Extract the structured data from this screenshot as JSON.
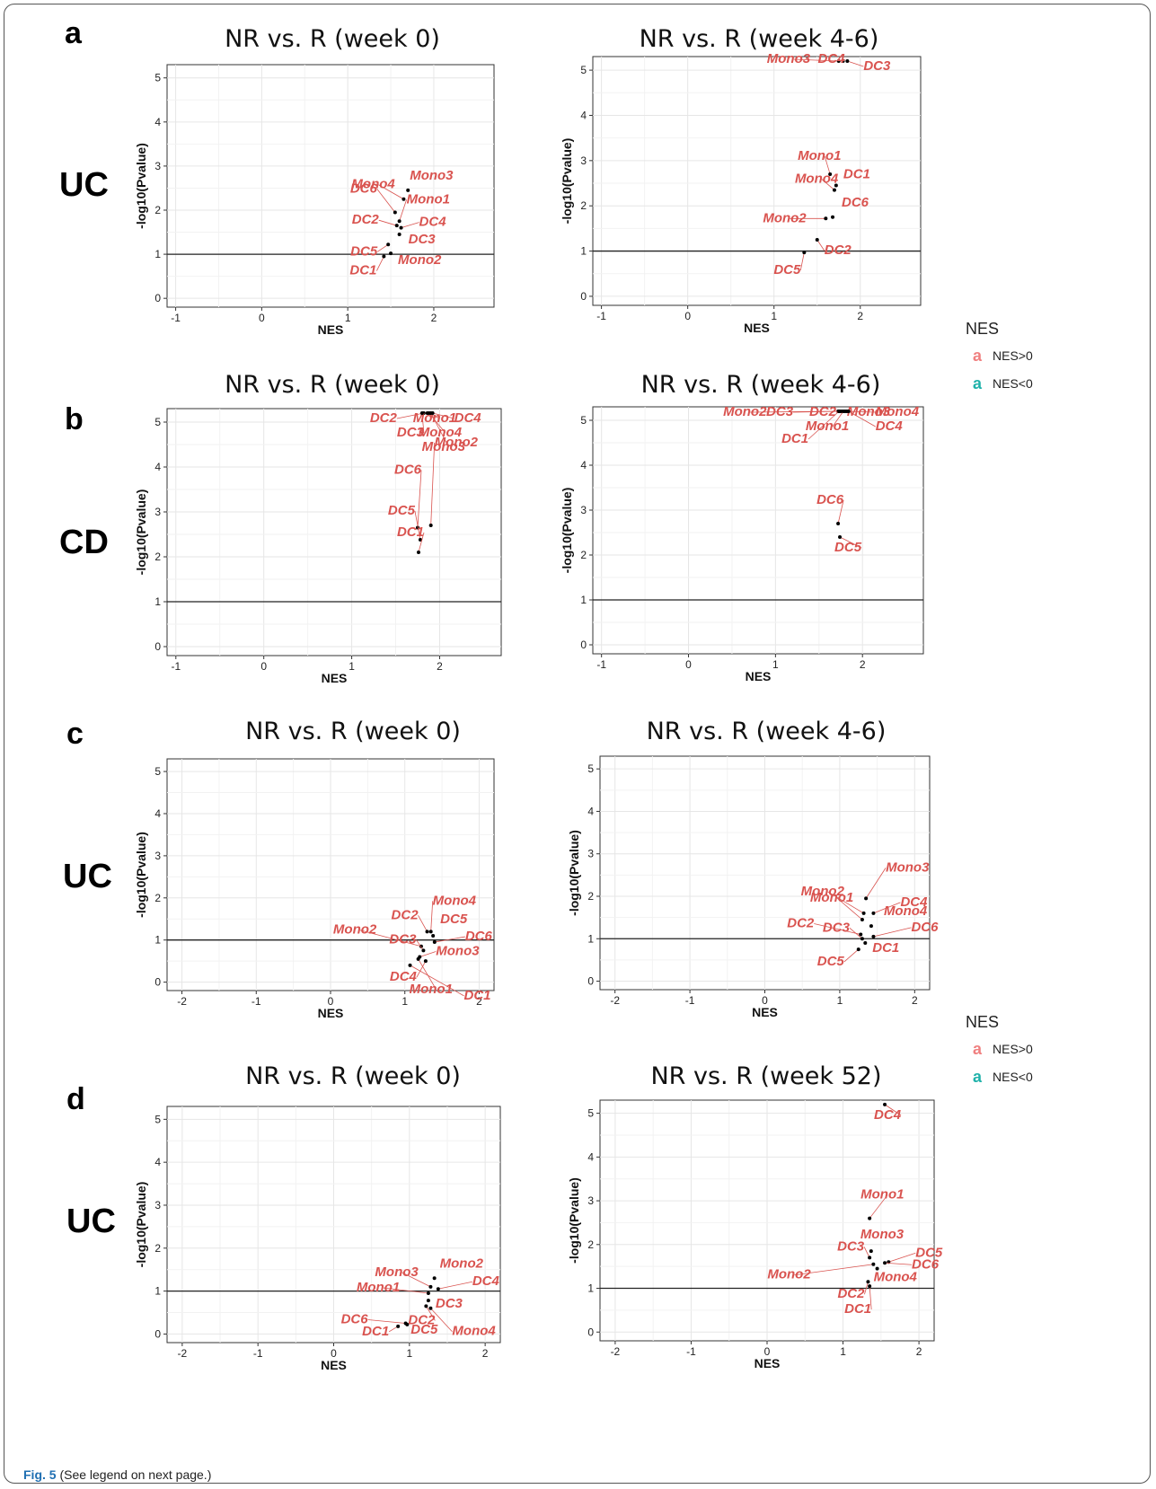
{
  "figure": {
    "caption_bold": "Fig. 5",
    "caption_rest": " (See legend on next page.)",
    "legends": [
      {
        "title": "NES",
        "items": [
          {
            "key": "a",
            "label": "NES>0",
            "color": "#f08080"
          },
          {
            "key": "a",
            "label": "NES<0",
            "color": "#20b2aa"
          }
        ]
      },
      {
        "title": "NES",
        "items": [
          {
            "key": "a",
            "label": "NES>0",
            "color": "#f08080"
          },
          {
            "key": "a",
            "label": "NES<0",
            "color": "#20b2aa"
          }
        ]
      }
    ],
    "rows": [
      {
        "letter": "a",
        "label": "UC"
      },
      {
        "letter": "b",
        "label": "CD"
      },
      {
        "letter": "c",
        "label": "UC"
      },
      {
        "letter": "d",
        "label": "UC"
      }
    ],
    "label_color": "#d9534f",
    "point_color": "#000000"
  },
  "chart_data": [
    {
      "type": "scatter",
      "title": "NR vs. R (week 0)",
      "xlabel": "NES",
      "ylabel": "-log10(Pvalue)",
      "xlim": [
        -1.1,
        2.7
      ],
      "ylim": [
        -0.2,
        5.3
      ],
      "xticks": [
        -1,
        0,
        1,
        2
      ],
      "yticks": [
        0,
        1,
        2,
        3,
        4,
        5
      ],
      "hline": 1,
      "points": [
        {
          "label": "Mono3",
          "x": 1.7,
          "y": 2.45
        },
        {
          "label": "Mono4",
          "x": 1.65,
          "y": 2.25
        },
        {
          "label": "DC6",
          "x": 1.55,
          "y": 1.95
        },
        {
          "label": "Mono1",
          "x": 1.6,
          "y": 1.75
        },
        {
          "label": "DC2",
          "x": 1.57,
          "y": 1.65
        },
        {
          "label": "DC4",
          "x": 1.62,
          "y": 1.6
        },
        {
          "label": "DC3",
          "x": 1.6,
          "y": 1.45
        },
        {
          "label": "DC5",
          "x": 1.47,
          "y": 1.22
        },
        {
          "label": "Mono2",
          "x": 1.5,
          "y": 1.02
        },
        {
          "label": "DC1",
          "x": 1.42,
          "y": 0.95
        }
      ]
    },
    {
      "type": "scatter",
      "title": "NR vs. R (week 4-6)",
      "xlabel": "NES",
      "ylabel": "-log10(Pvalue)",
      "xlim": [
        -1.1,
        2.7
      ],
      "ylim": [
        -0.2,
        5.3
      ],
      "xticks": [
        -1,
        0,
        1,
        2
      ],
      "yticks": [
        0,
        1,
        2,
        3,
        4,
        5
      ],
      "hline": 1,
      "points": [
        {
          "label": "Mono3",
          "x": 1.75,
          "y": 5.2
        },
        {
          "label": "DC4",
          "x": 1.8,
          "y": 5.2
        },
        {
          "label": "DC3",
          "x": 1.85,
          "y": 5.2
        },
        {
          "label": "Mono1",
          "x": 1.65,
          "y": 2.7
        },
        {
          "label": "DC1",
          "x": 1.72,
          "y": 2.45
        },
        {
          "label": "Mono4",
          "x": 1.7,
          "y": 2.35
        },
        {
          "label": "DC6",
          "x": 1.68,
          "y": 1.75
        },
        {
          "label": "Mono2",
          "x": 1.6,
          "y": 1.72
        },
        {
          "label": "DC2",
          "x": 1.5,
          "y": 1.25
        },
        {
          "label": "DC5",
          "x": 1.35,
          "y": 0.97
        }
      ]
    },
    {
      "type": "scatter",
      "title": "NR vs. R (week 0)",
      "xlabel": "NES",
      "ylabel": "-log10(Pvalue)",
      "xlim": [
        -1.1,
        2.7
      ],
      "ylim": [
        -0.2,
        5.3
      ],
      "xticks": [
        -1,
        0,
        1,
        2
      ],
      "yticks": [
        0,
        1,
        2,
        3,
        4,
        5
      ],
      "hline": 1,
      "points": [
        {
          "label": "DC2",
          "x": 1.82,
          "y": 5.2
        },
        {
          "label": "Mono1",
          "x": 1.86,
          "y": 5.2
        },
        {
          "label": "DC4",
          "x": 1.92,
          "y": 5.2
        },
        {
          "label": "DC3",
          "x": 1.8,
          "y": 5.2
        },
        {
          "label": "Mono4",
          "x": 1.88,
          "y": 5.2
        },
        {
          "label": "Mono3",
          "x": 1.9,
          "y": 5.2
        },
        {
          "label": "DC6",
          "x": 1.75,
          "y": 2.65
        },
        {
          "label": "Mono2",
          "x": 1.9,
          "y": 2.7
        },
        {
          "label": "DC5",
          "x": 1.78,
          "y": 2.38
        },
        {
          "label": "DC1",
          "x": 1.76,
          "y": 2.1
        }
      ]
    },
    {
      "type": "scatter",
      "title": "NR vs. R (week 4-6)",
      "xlabel": "NES",
      "ylabel": "-log10(Pvalue)",
      "xlim": [
        -1.1,
        2.7
      ],
      "ylim": [
        -0.2,
        5.3
      ],
      "xticks": [
        -1,
        0,
        1,
        2
      ],
      "yticks": [
        0,
        1,
        2,
        3,
        4,
        5
      ],
      "hline": 1,
      "points": [
        {
          "label": "Mono2",
          "x": 1.72,
          "y": 5.2
        },
        {
          "label": "DC3",
          "x": 1.74,
          "y": 5.2
        },
        {
          "label": "DC2",
          "x": 1.76,
          "y": 5.2
        },
        {
          "label": "Mono3",
          "x": 1.8,
          "y": 5.2
        },
        {
          "label": "Mono4",
          "x": 1.82,
          "y": 5.2
        },
        {
          "label": "Mono1",
          "x": 1.78,
          "y": 5.2
        },
        {
          "label": "DC4",
          "x": 1.84,
          "y": 5.2
        },
        {
          "label": "DC1",
          "x": 1.73,
          "y": 5.2
        },
        {
          "label": "DC6",
          "x": 1.72,
          "y": 2.7
        },
        {
          "label": "DC5",
          "x": 1.74,
          "y": 2.4
        }
      ]
    },
    {
      "type": "scatter",
      "title": "NR vs. R (week 0)",
      "xlabel": "NES",
      "ylabel": "-log10(Pvalue)",
      "xlim": [
        -2.2,
        2.2
      ],
      "ylim": [
        -0.2,
        5.3
      ],
      "xticks": [
        -2,
        -1,
        0,
        1,
        2
      ],
      "yticks": [
        0,
        1,
        2,
        3,
        4,
        5
      ],
      "hline": 1,
      "points": [
        {
          "label": "Mono4",
          "x": 1.35,
          "y": 1.2
        },
        {
          "label": "DC2",
          "x": 1.3,
          "y": 1.2
        },
        {
          "label": "DC5",
          "x": 1.38,
          "y": 1.1
        },
        {
          "label": "DC6",
          "x": 1.4,
          "y": 0.95
        },
        {
          "label": "Mono2",
          "x": 1.22,
          "y": 0.85
        },
        {
          "label": "DC3",
          "x": 1.25,
          "y": 0.75
        },
        {
          "label": "Mono3",
          "x": 1.2,
          "y": 0.6
        },
        {
          "label": "Mono1",
          "x": 1.18,
          "y": 0.55
        },
        {
          "label": "DC4",
          "x": 1.28,
          "y": 0.5
        },
        {
          "label": "DC1",
          "x": 1.07,
          "y": 0.4
        }
      ]
    },
    {
      "type": "scatter",
      "title": "NR vs. R (week 4-6)",
      "xlabel": "NES",
      "ylabel": "-log10(Pvalue)",
      "xlim": [
        -2.2,
        2.2
      ],
      "ylim": [
        -0.2,
        5.3
      ],
      "xticks": [
        -2,
        -1,
        0,
        1,
        2
      ],
      "yticks": [
        0,
        1,
        2,
        3,
        4,
        5
      ],
      "hline": 1,
      "points": [
        {
          "label": "Mono3",
          "x": 1.35,
          "y": 1.95
        },
        {
          "label": "Mono2",
          "x": 1.32,
          "y": 1.6
        },
        {
          "label": "DC4",
          "x": 1.45,
          "y": 1.6
        },
        {
          "label": "Mono1",
          "x": 1.3,
          "y": 1.45
        },
        {
          "label": "Mono4",
          "x": 1.42,
          "y": 1.3
        },
        {
          "label": "DC2",
          "x": 1.28,
          "y": 1.1
        },
        {
          "label": "DC3",
          "x": 1.3,
          "y": 1.0
        },
        {
          "label": "DC6",
          "x": 1.45,
          "y": 1.05
        },
        {
          "label": "DC1",
          "x": 1.34,
          "y": 0.9
        },
        {
          "label": "DC5",
          "x": 1.25,
          "y": 0.75
        }
      ]
    },
    {
      "type": "scatter",
      "title": "NR vs. R (week 0)",
      "xlabel": "NES",
      "ylabel": "-log10(Pvalue)",
      "xlim": [
        -2.2,
        2.2
      ],
      "ylim": [
        -0.2,
        5.3
      ],
      "xticks": [
        -2,
        -1,
        0,
        1,
        2
      ],
      "yticks": [
        0,
        1,
        2,
        3,
        4,
        5
      ],
      "hline": 1,
      "points": [
        {
          "label": "Mono2",
          "x": 1.33,
          "y": 1.3
        },
        {
          "label": "Mono3",
          "x": 1.28,
          "y": 1.1
        },
        {
          "label": "DC4",
          "x": 1.38,
          "y": 1.05
        },
        {
          "label": "Mono1",
          "x": 1.25,
          "y": 0.95
        },
        {
          "label": "DC3",
          "x": 1.25,
          "y": 0.78
        },
        {
          "label": "DC2",
          "x": 1.22,
          "y": 0.65
        },
        {
          "label": "Mono4",
          "x": 1.28,
          "y": 0.6
        },
        {
          "label": "DC6",
          "x": 0.95,
          "y": 0.25
        },
        {
          "label": "DC5",
          "x": 0.97,
          "y": 0.22
        },
        {
          "label": "DC1",
          "x": 0.85,
          "y": 0.18
        }
      ]
    },
    {
      "type": "scatter",
      "title": "NR vs. R (week 52)",
      "xlabel": "NES",
      "ylabel": "-log10(Pvalue)",
      "xlim": [
        -2.2,
        2.2
      ],
      "ylim": [
        -0.2,
        5.3
      ],
      "xticks": [
        -2,
        -1,
        0,
        1,
        2
      ],
      "yticks": [
        0,
        1,
        2,
        3,
        4,
        5
      ],
      "hline": 1,
      "points": [
        {
          "label": "DC4",
          "x": 1.55,
          "y": 5.2
        },
        {
          "label": "Mono1",
          "x": 1.35,
          "y": 2.6
        },
        {
          "label": "Mono3",
          "x": 1.37,
          "y": 1.85
        },
        {
          "label": "DC3",
          "x": 1.35,
          "y": 1.7
        },
        {
          "label": "DC5",
          "x": 1.6,
          "y": 1.6
        },
        {
          "label": "DC6",
          "x": 1.55,
          "y": 1.58
        },
        {
          "label": "Mono2",
          "x": 1.4,
          "y": 1.55
        },
        {
          "label": "Mono4",
          "x": 1.45,
          "y": 1.45
        },
        {
          "label": "DC2",
          "x": 1.33,
          "y": 1.15
        },
        {
          "label": "DC1",
          "x": 1.35,
          "y": 1.05
        }
      ]
    }
  ]
}
